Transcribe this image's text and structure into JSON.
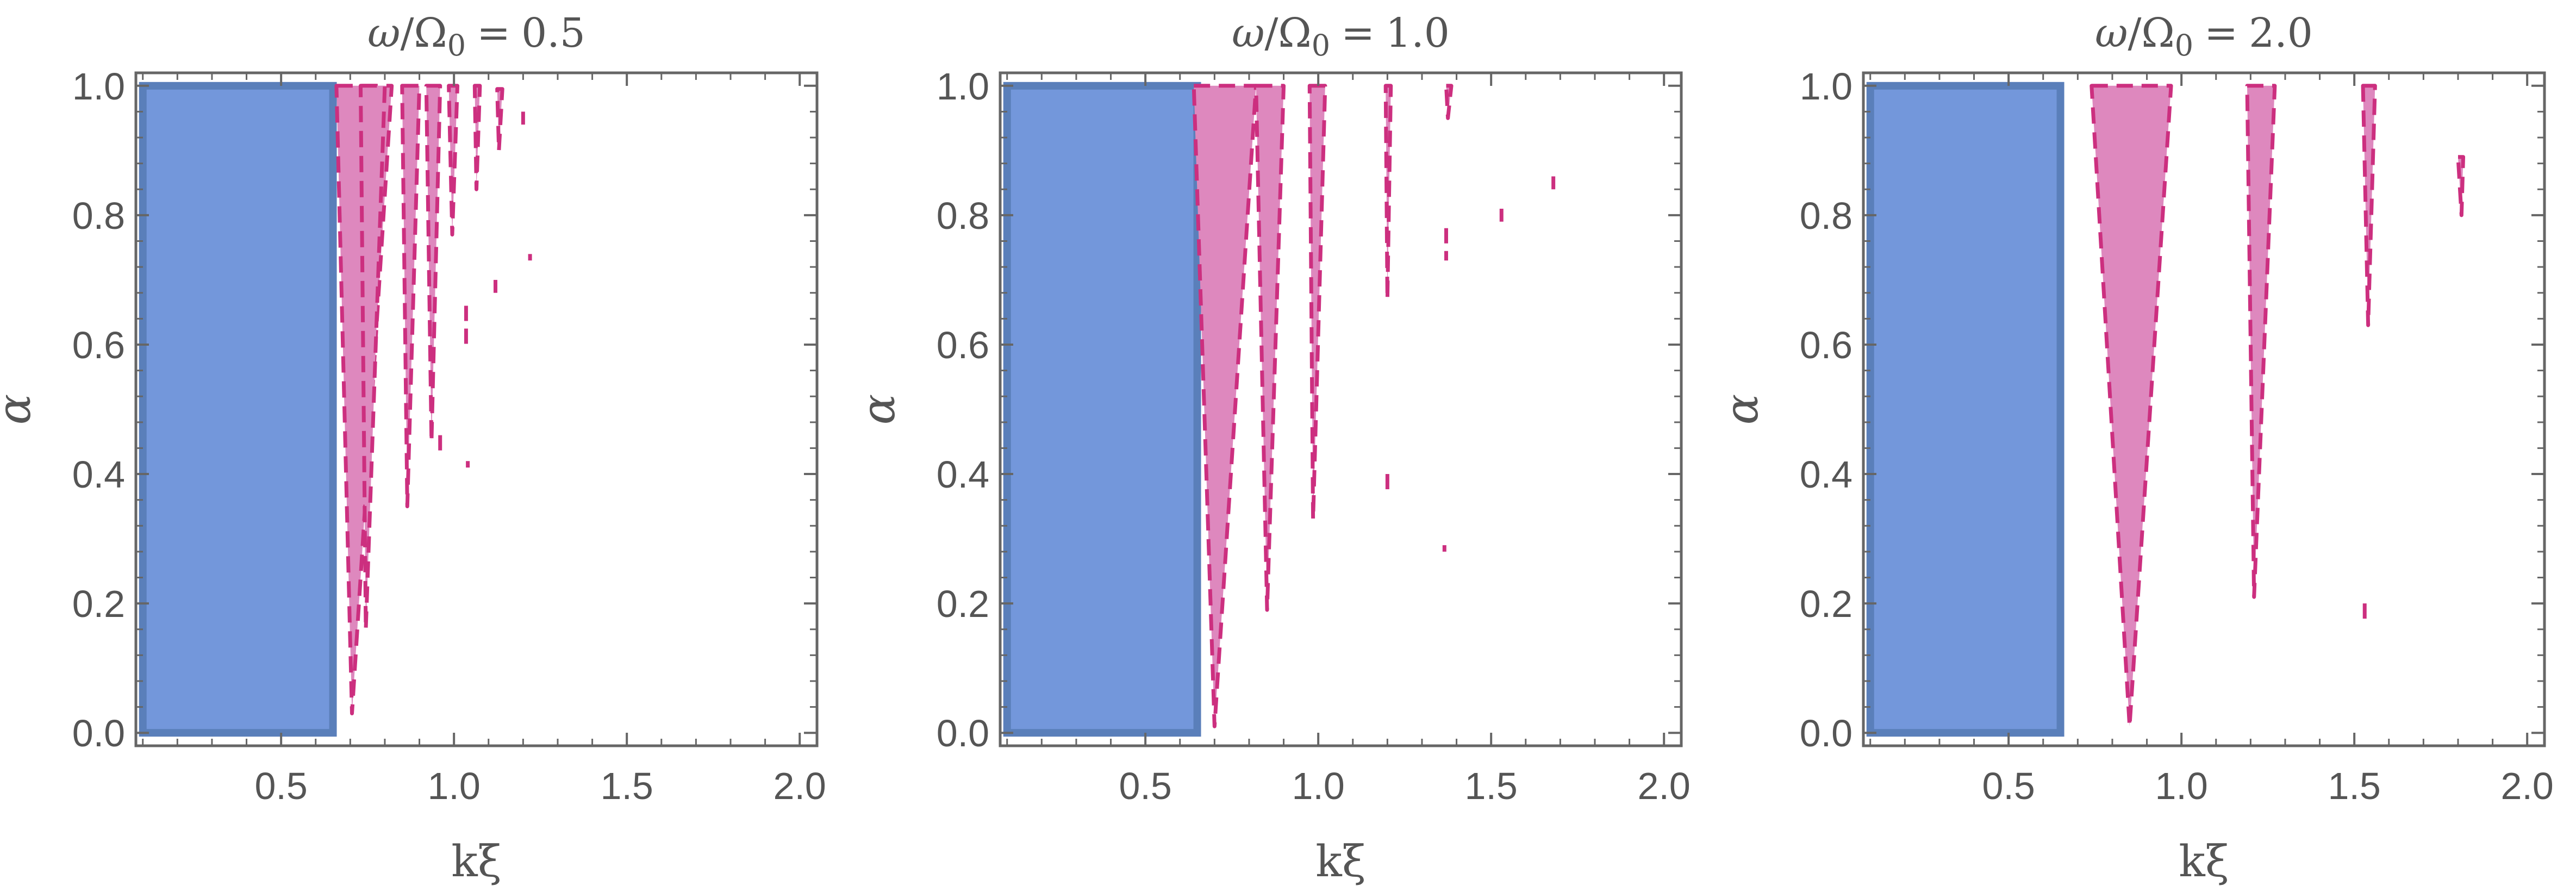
{
  "chart_data": [
    {
      "type": "area",
      "title": {
        "num": "ω",
        "slash": "/",
        "den_sym": "Ω",
        "den_sub": "0",
        "rel": "=",
        "value": "0.5"
      },
      "xlabel": "kξ",
      "ylabel": "α",
      "xlim": [
        0.08,
        2.05
      ],
      "ylim": [
        -0.02,
        1.02
      ],
      "xticks": [
        "0.5",
        "1.0",
        "1.5",
        "2.0"
      ],
      "yticks": [
        "0.0",
        "0.2",
        "0.4",
        "0.6",
        "0.8",
        "1.0"
      ],
      "grid": false,
      "series": [
        {
          "style": "blue-region",
          "color": "#7397db",
          "regions": [
            {
              "x0": 0.1,
              "x1": 0.65,
              "y0": 0.0,
              "y1": 1.0
            }
          ]
        },
        {
          "style": "magenta-wedges-dashed",
          "color": "#de88be",
          "stroke": "#cc2f7f",
          "wedges": [
            {
              "xl": 0.66,
              "xr": 0.82,
              "xt": 0.705,
              "ytop": 1.0,
              "ybot": 0.03
            },
            {
              "xl": 0.73,
              "xr": 0.8,
              "xt": 0.745,
              "ytop": 1.0,
              "ybot": 0.16
            },
            {
              "xl": 0.85,
              "xr": 0.9,
              "xt": 0.865,
              "ytop": 1.0,
              "ybot": 0.35
            },
            {
              "xl": 0.92,
              "xr": 0.96,
              "xt": 0.935,
              "ytop": 1.0,
              "ybot": 0.45
            },
            {
              "xl": 0.985,
              "xr": 1.01,
              "xt": 0.995,
              "ytop": 1.0,
              "ybot": 0.77
            },
            {
              "xl": 1.06,
              "xr": 1.075,
              "xt": 1.065,
              "ytop": 1.0,
              "ybot": 0.84
            },
            {
              "xl": 1.125,
              "xr": 1.14,
              "xt": 1.13,
              "ytop": 0.995,
              "ybot": 0.9
            }
          ],
          "fragments": [
            {
              "x": 0.96,
              "y0": 0.43,
              "y1": 0.46
            },
            {
              "x": 1.035,
              "y0": 0.6,
              "y1": 0.66
            },
            {
              "x": 1.04,
              "y0": 0.41,
              "y1": 0.42
            },
            {
              "x": 1.12,
              "y0": 0.68,
              "y1": 0.7
            },
            {
              "x": 1.22,
              "y0": 0.73,
              "y1": 0.74
            },
            {
              "x": 1.2,
              "y0": 0.94,
              "y1": 0.96
            }
          ]
        }
      ]
    },
    {
      "type": "area",
      "title": {
        "num": "ω",
        "slash": "/",
        "den_sym": "Ω",
        "den_sub": "0",
        "rel": "=",
        "value": "1.0"
      },
      "xlabel": "kξ",
      "ylabel": "α",
      "xlim": [
        0.08,
        2.05
      ],
      "ylim": [
        -0.02,
        1.02
      ],
      "xticks": [
        "0.5",
        "1.0",
        "1.5",
        "2.0"
      ],
      "yticks": [
        "0.0",
        "0.2",
        "0.4",
        "0.6",
        "0.8",
        "1.0"
      ],
      "grid": false,
      "series": [
        {
          "style": "blue-region",
          "color": "#7397db",
          "regions": [
            {
              "x0": 0.1,
              "x1": 0.65,
              "y0": 0.0,
              "y1": 1.0
            }
          ]
        },
        {
          "style": "magenta-wedges-dashed",
          "color": "#de88be",
          "stroke": "#cc2f7f",
          "wedges": [
            {
              "xl": 0.64,
              "xr": 0.82,
              "xt": 0.7,
              "ytop": 1.0,
              "ybot": 0.01
            },
            {
              "xl": 0.82,
              "xr": 0.9,
              "xt": 0.852,
              "ytop": 1.0,
              "ybot": 0.19
            },
            {
              "xl": 0.975,
              "xr": 1.02,
              "xt": 0.985,
              "ytop": 1.0,
              "ybot": 0.33
            },
            {
              "xl": 1.195,
              "xr": 1.21,
              "xt": 1.2,
              "ytop": 1.0,
              "ybot": 0.67
            },
            {
              "xl": 1.37,
              "xr": 1.385,
              "xt": 1.375,
              "ytop": 1.0,
              "ybot": 0.95
            }
          ],
          "fragments": [
            {
              "x": 1.2,
              "y0": 0.37,
              "y1": 0.4
            },
            {
              "x": 1.37,
              "y0": 0.73,
              "y1": 0.78
            },
            {
              "x": 1.53,
              "y0": 0.79,
              "y1": 0.81
            },
            {
              "x": 1.68,
              "y0": 0.84,
              "y1": 0.86
            },
            {
              "x": 1.365,
              "y0": 0.28,
              "y1": 0.29
            }
          ]
        }
      ]
    },
    {
      "type": "area",
      "title": {
        "num": "ω",
        "slash": "/",
        "den_sym": "Ω",
        "den_sub": "0",
        "rel": "=",
        "value": "2.0"
      },
      "xlabel": "kξ",
      "ylabel": "α",
      "xlim": [
        0.08,
        2.05
      ],
      "ylim": [
        -0.02,
        1.02
      ],
      "xticks": [
        "0.5",
        "1.0",
        "1.5",
        "2.0"
      ],
      "yticks": [
        "0.0",
        "0.2",
        "0.4",
        "0.6",
        "0.8",
        "1.0"
      ],
      "grid": false,
      "series": [
        {
          "style": "blue-region",
          "color": "#7397db",
          "regions": [
            {
              "x0": 0.1,
              "x1": 0.65,
              "y0": 0.0,
              "y1": 1.0
            }
          ]
        },
        {
          "style": "magenta-wedges-dashed",
          "color": "#de88be",
          "stroke": "#cc2f7f",
          "wedges": [
            {
              "xl": 0.74,
              "xr": 0.97,
              "xt": 0.85,
              "ytop": 1.0,
              "ybot": 0.01
            },
            {
              "xl": 1.19,
              "xr": 1.27,
              "xt": 1.21,
              "ytop": 1.0,
              "ybot": 0.21
            },
            {
              "xl": 1.525,
              "xr": 1.56,
              "xt": 1.54,
              "ytop": 1.0,
              "ybot": 0.63
            },
            {
              "xl": 1.8,
              "xr": 1.815,
              "xt": 1.81,
              "ytop": 0.89,
              "ybot": 0.8
            }
          ],
          "fragments": [
            {
              "x": 1.53,
              "y0": 0.17,
              "y1": 0.2
            }
          ]
        }
      ]
    }
  ]
}
